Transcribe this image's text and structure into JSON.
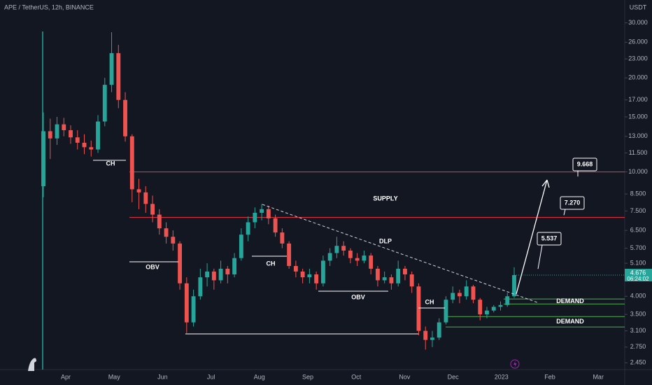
{
  "chart_data": {
    "type": "candlestick",
    "title": "APE / TetherUS, 12h, BINANCE",
    "y_axis_unit": "USDT",
    "log_scale": true,
    "grid": false,
    "up_color": "#26a69a",
    "down_color": "#ef5350",
    "ylim": [
      2.33,
      35.5
    ],
    "yticks": [
      {
        "value": 30,
        "label": "30.000"
      },
      {
        "value": 26,
        "label": "26.000"
      },
      {
        "value": 23,
        "label": "23.000"
      },
      {
        "value": 20,
        "label": "20.000"
      },
      {
        "value": 17,
        "label": "17.000"
      },
      {
        "value": 15,
        "label": "15.000"
      },
      {
        "value": 13,
        "label": "13.000"
      },
      {
        "value": 11.5,
        "label": "11.500"
      },
      {
        "value": 10,
        "label": "10.000"
      },
      {
        "value": 8.5,
        "label": "8.500"
      },
      {
        "value": 7.5,
        "label": "7.500"
      },
      {
        "value": 6.5,
        "label": "6.500"
      },
      {
        "value": 5.7,
        "label": "5.700"
      },
      {
        "value": 5.1,
        "label": "5.100"
      },
      {
        "value": 4,
        "label": "4.000"
      },
      {
        "value": 3.5,
        "label": "3.500"
      },
      {
        "value": 3.1,
        "label": "3.100"
      },
      {
        "value": 2.75,
        "label": "2.750"
      },
      {
        "value": 2.45,
        "label": "2.450"
      }
    ],
    "x_axis_labels": [
      "Apr",
      "May",
      "Jun",
      "Jul",
      "Aug",
      "Sep",
      "Oct",
      "Nov",
      "Dec",
      "2023",
      "Feb",
      "Mar"
    ],
    "open": [
      9.0,
      13.5,
      12.8,
      14.2,
      13.6,
      12.9,
      12.4,
      12.0,
      11.8,
      14.5,
      19.0,
      24.0,
      17.0,
      13.0,
      8.8,
      8.6,
      7.9,
      7.3,
      6.6,
      6.2,
      5.9,
      4.4,
      3.3,
      4.0,
      4.6,
      4.8,
      4.5,
      4.9,
      4.7,
      5.3,
      6.3,
      6.9,
      7.4,
      7.6,
      7.1,
      6.4,
      5.9,
      5.0,
      4.8,
      4.6,
      4.7,
      4.4,
      5.2,
      5.5,
      5.8,
      5.6,
      5.3,
      5.2,
      5.4,
      4.9,
      4.5,
      4.6,
      4.4,
      4.9,
      4.7,
      4.3,
      3.1,
      2.9,
      2.95,
      3.3,
      3.9,
      4.1,
      4.0,
      4.3,
      3.9,
      3.5,
      3.6,
      3.7,
      3.75,
      4.0
    ],
    "high": [
      15.5,
      14.8,
      15.0,
      14.9,
      14.1,
      13.6,
      13.2,
      12.6,
      15.2,
      20.0,
      28.0,
      25.5,
      18.0,
      13.2,
      9.5,
      9.0,
      8.4,
      7.6,
      6.9,
      6.5,
      6.0,
      4.6,
      4.2,
      4.9,
      5.1,
      4.9,
      5.2,
      5.0,
      5.5,
      6.6,
      7.2,
      7.7,
      7.9,
      7.8,
      7.3,
      6.6,
      6.0,
      5.2,
      4.9,
      4.9,
      4.8,
      5.4,
      5.7,
      6.2,
      6.0,
      5.7,
      5.5,
      5.6,
      5.5,
      5.0,
      4.8,
      4.7,
      5.2,
      5.0,
      4.8,
      4.4,
      3.2,
      3.1,
      3.4,
      4.0,
      4.3,
      4.2,
      4.5,
      4.35,
      3.95,
      3.7,
      3.75,
      3.85,
      4.1,
      4.95
    ],
    "low": [
      8.3,
      11.0,
      12.2,
      13.0,
      12.3,
      11.8,
      11.4,
      11.2,
      11.5,
      14.0,
      18.0,
      16.0,
      12.5,
      8.0,
      7.6,
      7.4,
      6.9,
      6.3,
      5.9,
      5.6,
      4.2,
      3.05,
      3.2,
      3.9,
      4.3,
      4.2,
      4.4,
      4.4,
      4.6,
      5.2,
      6.0,
      6.6,
      7.0,
      6.8,
      6.2,
      5.7,
      4.9,
      4.6,
      4.4,
      4.4,
      4.2,
      4.3,
      5.0,
      5.3,
      5.4,
      5.1,
      5.0,
      5.1,
      4.7,
      4.3,
      4.4,
      4.2,
      4.3,
      4.5,
      4.1,
      3.0,
      2.7,
      2.75,
      2.9,
      3.25,
      3.8,
      3.8,
      3.9,
      3.8,
      3.35,
      3.4,
      3.55,
      3.6,
      3.7,
      3.95
    ],
    "close": [
      13.5,
      12.8,
      14.2,
      13.6,
      12.9,
      12.4,
      12.0,
      11.8,
      14.5,
      19.0,
      24.0,
      17.0,
      13.0,
      8.8,
      8.6,
      7.9,
      7.3,
      6.6,
      6.2,
      5.9,
      4.4,
      3.3,
      4.0,
      4.6,
      4.8,
      4.5,
      4.9,
      4.7,
      5.3,
      6.3,
      6.9,
      7.4,
      7.6,
      7.1,
      6.4,
      5.9,
      5.0,
      4.8,
      4.6,
      4.7,
      4.4,
      5.2,
      5.5,
      5.8,
      5.6,
      5.3,
      5.2,
      5.4,
      4.9,
      4.5,
      4.6,
      4.4,
      4.9,
      4.7,
      4.3,
      3.1,
      2.9,
      2.95,
      3.3,
      3.9,
      4.1,
      4.0,
      4.3,
      3.9,
      3.5,
      3.6,
      3.7,
      3.75,
      4.0,
      4.676
    ],
    "last_price": {
      "value": 4.676,
      "label": "4.676"
    },
    "countdown": "06:24:02",
    "zones": [
      {
        "label": "SUPPLY",
        "low": 7.15,
        "high": 10.0,
        "color": "#f23645"
      },
      {
        "label": "DEMAND",
        "low": 3.78,
        "high": 3.92,
        "color": "#4caf50"
      },
      {
        "label": "DEMAND",
        "low": 3.19,
        "high": 3.445,
        "color": "#4caf50"
      }
    ],
    "structure_labels": [
      "CH",
      "OBV",
      "CH",
      "OBV",
      "CH"
    ],
    "trendline_label": "DLP",
    "targets": [
      {
        "value": 9.668,
        "label": "9.668"
      },
      {
        "value": 7.27,
        "label": "7.270"
      },
      {
        "value": 5.537,
        "label": "5.537"
      }
    ]
  }
}
